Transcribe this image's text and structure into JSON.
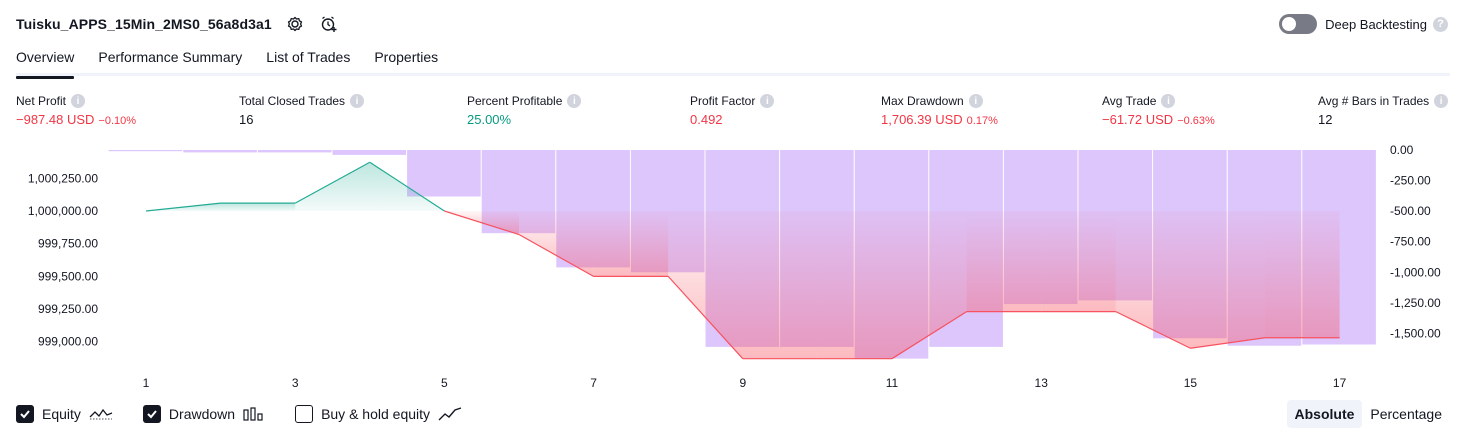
{
  "header": {
    "strategy_name": "Tuisku_APPS_15Min_2MS0_56a8d3a1",
    "settings_icon": "gear-icon",
    "alert_icon": "add-alert-icon",
    "deep_backtesting_label": "Deep Backtesting",
    "deep_backtesting_enabled": false
  },
  "tabs": [
    {
      "label": "Overview",
      "active": true
    },
    {
      "label": "Performance Summary",
      "active": false
    },
    {
      "label": "List of Trades",
      "active": false
    },
    {
      "label": "Properties",
      "active": false
    }
  ],
  "stats": [
    {
      "label": "Net Profit",
      "value": "−987.48 USD",
      "pct": "−0.10%",
      "tone": "neg"
    },
    {
      "label": "Total Closed Trades",
      "value": "16",
      "pct": "",
      "tone": "neu"
    },
    {
      "label": "Percent Profitable",
      "value": "25.00%",
      "pct": "",
      "tone": "pos"
    },
    {
      "label": "Profit Factor",
      "value": "0.492",
      "pct": "",
      "tone": "neg"
    },
    {
      "label": "Max Drawdown",
      "value": "1,706.39 USD",
      "pct": "0.17%",
      "tone": "neg"
    },
    {
      "label": "Avg Trade",
      "value": "−61.72 USD",
      "pct": "−0.63%",
      "tone": "neg"
    },
    {
      "label": "Avg # Bars in Trades",
      "value": "12",
      "pct": "",
      "tone": "neu"
    }
  ],
  "chart_data": {
    "type": "line",
    "x": [
      1,
      2,
      3,
      4,
      5,
      6,
      7,
      8,
      9,
      10,
      11,
      12,
      13,
      14,
      15,
      16,
      17
    ],
    "x_ticks": [
      "1",
      "3",
      "5",
      "7",
      "9",
      "11",
      "13",
      "15",
      "17"
    ],
    "equity": [
      1000000.0,
      1000060.0,
      1000060.0,
      1000373.0,
      1000000.0,
      999820.0,
      999500.0,
      999500.0,
      998870.0,
      998870.0,
      998870.0,
      999230.0,
      999230.0,
      999230.0,
      998950.0,
      999030.0,
      999030.0
    ],
    "drawdown": [
      -10,
      -20,
      -20,
      -40,
      -380,
      -680,
      -960,
      -1000,
      -1610,
      -1610,
      -1706,
      -1610,
      -1260,
      -1230,
      -1540,
      -1600,
      -1590
    ],
    "left_axis": {
      "ticks": [
        "1,000,250.00",
        "1,000,000.00",
        "999,750.00",
        "999,500.00",
        "999,250.00",
        "999,000.00"
      ],
      "values": [
        1000250,
        1000000,
        999750,
        999500,
        999250,
        999000
      ]
    },
    "right_axis": {
      "ticks": [
        "0.00",
        "-250.00",
        "-500.00",
        "-750.00",
        "-1,000.00",
        "-1,250.00",
        "-1,500.00"
      ],
      "values": [
        0,
        -250,
        -500,
        -750,
        -1000,
        -1250,
        -1500
      ]
    },
    "colors": {
      "equity_up": "#22ab94",
      "equity_down": "#f7525f",
      "drawdown_bar": "#d1b3fb"
    }
  },
  "legend": [
    {
      "label": "Equity",
      "checked": true,
      "icon": "equity-line-icon"
    },
    {
      "label": "Drawdown",
      "checked": true,
      "icon": "drawdown-bars-icon"
    },
    {
      "label": "Buy & hold equity",
      "checked": false,
      "icon": "buy-hold-line-icon"
    }
  ],
  "mode": {
    "absolute_label": "Absolute",
    "percentage_label": "Percentage",
    "selected": "Absolute"
  }
}
